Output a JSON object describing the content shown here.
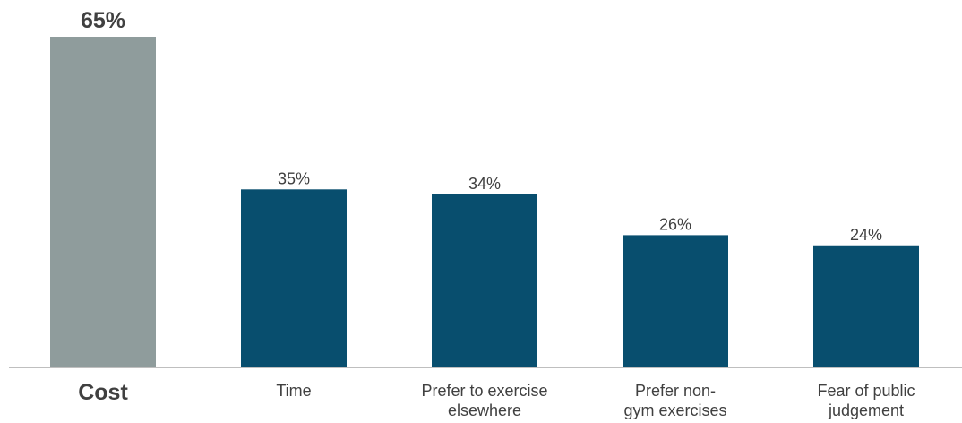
{
  "chart_data": {
    "type": "bar",
    "categories": [
      "Cost",
      "Time",
      "Prefer to exercise elsewhere",
      "Prefer non-gym exercises",
      "Fear of public judgement"
    ],
    "category_lines": [
      [
        "Cost"
      ],
      [
        "Time"
      ],
      [
        "Prefer to exercise",
        "elsewhere"
      ],
      [
        "Prefer non-",
        "gym exercises"
      ],
      [
        "Fear of public",
        "judgement"
      ]
    ],
    "values": [
      65,
      35,
      34,
      26,
      24
    ],
    "value_labels": [
      "65%",
      "35%",
      "34%",
      "26%",
      "24%"
    ],
    "highlight_index": 0,
    "colors": {
      "highlight": "#8f9c9c",
      "bar": "#084e6e",
      "axis": "#7f7f7f",
      "label": "#404040",
      "highlight_label": "#404040"
    },
    "title": "",
    "xlabel": "",
    "ylabel": "",
    "ylim": [
      0,
      65
    ],
    "grid": false,
    "legend": "none"
  }
}
